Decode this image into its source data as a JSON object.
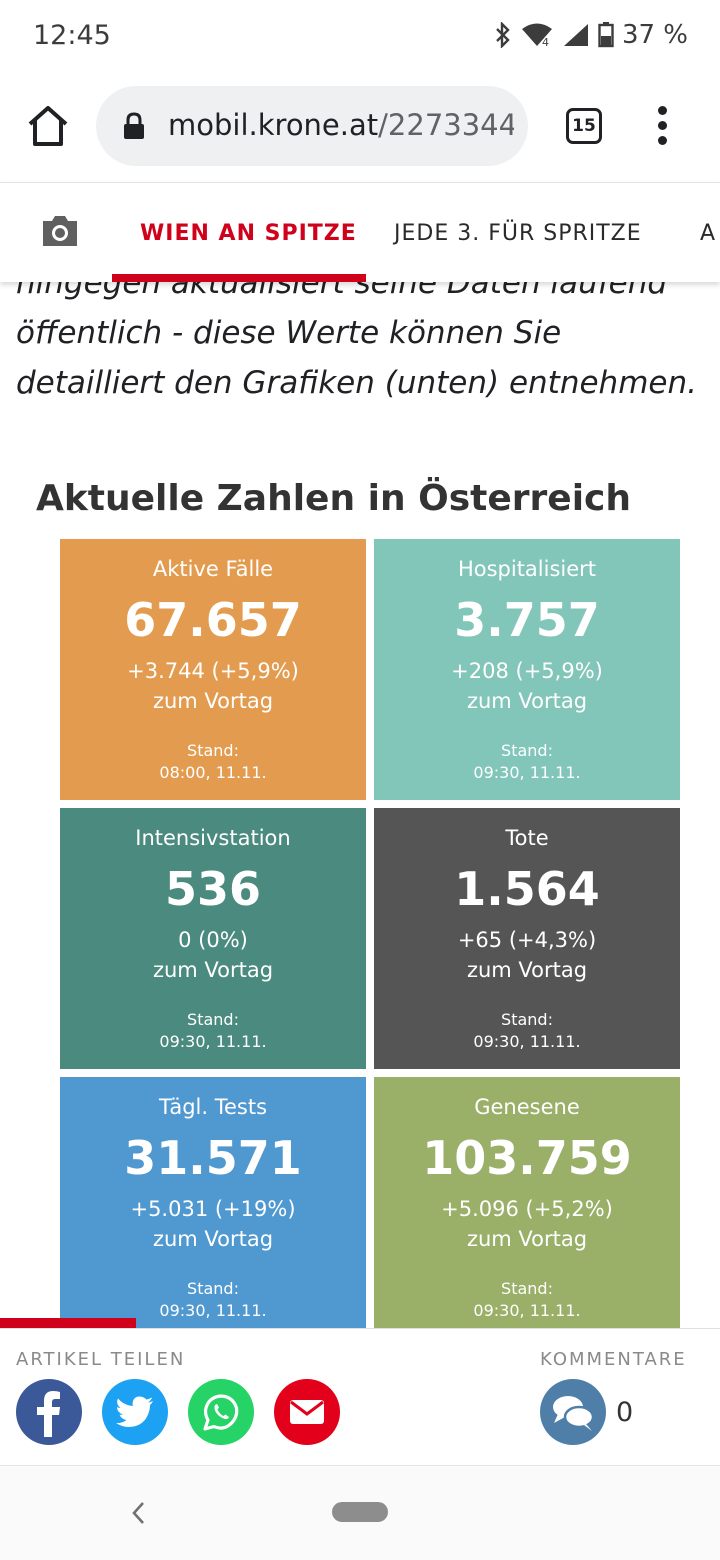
{
  "status_bar": {
    "time": "12:45",
    "battery": "37 %",
    "icons": [
      "bluetooth-icon",
      "wifi-icon",
      "cell-signal-icon",
      "battery-icon"
    ]
  },
  "browser": {
    "url_host": "mobil.krone.at",
    "url_path": "/2273344",
    "tab_count": "15"
  },
  "nav": {
    "tabs": [
      {
        "label": "WIEN AN SPITZE",
        "active": true
      },
      {
        "label": "JEDE 3. FÜR SPRITZE",
        "active": false
      },
      {
        "label": "A",
        "active": false
      }
    ]
  },
  "article": {
    "line1": "hingegen aktualisiert seine Daten laufend",
    "line2": "öffentlich - diese Werte können Sie",
    "line3": "detailliert den Grafiken (unten) entnehmen."
  },
  "section": {
    "heading": "Aktuelle Zahlen in Österreich"
  },
  "cards": [
    {
      "title": "Aktive Fälle",
      "value": "67.657",
      "change": "+3.744 (+5,9%)",
      "sub": "zum Vortag",
      "stand": "Stand:",
      "date": "08:00, 11.11.",
      "color": "#e39c4f"
    },
    {
      "title": "Hospitalisiert",
      "value": "3.757",
      "change": "+208 (+5,9%)",
      "sub": "zum Vortag",
      "stand": "Stand:",
      "date": "09:30, 11.11.",
      "color": "#82c5b9"
    },
    {
      "title": "Intensivstation",
      "value": "536",
      "change": "0 (0%)",
      "sub": "zum Vortag",
      "stand": "Stand:",
      "date": "09:30, 11.11.",
      "color": "#4a8a7f"
    },
    {
      "title": "Tote",
      "value": "1.564",
      "change": "+65 (+4,3%)",
      "sub": "zum Vortag",
      "stand": "Stand:",
      "date": "09:30, 11.11.",
      "color": "#555555"
    },
    {
      "title": "Tägl. Tests",
      "value": "31.571",
      "change": "+5.031 (+19%)",
      "sub": "zum Vortag",
      "stand": "Stand:",
      "date": "09:30, 11.11.",
      "color": "#5098d0"
    },
    {
      "title": "Genesene",
      "value": "103.759",
      "change": "+5.096 (+5,2%)",
      "sub": "zum Vortag",
      "stand": "Stand:",
      "date": "09:30, 11.11.",
      "color": "#9aaf68"
    }
  ],
  "share": {
    "label": "ARTIKEL TEILEN",
    "comments_label": "KOMMENTARE",
    "comment_count": "0",
    "colors": {
      "facebook": "#3b5998",
      "twitter": "#1da1f2",
      "whatsapp": "#25d366",
      "email": "#e2001a"
    }
  }
}
